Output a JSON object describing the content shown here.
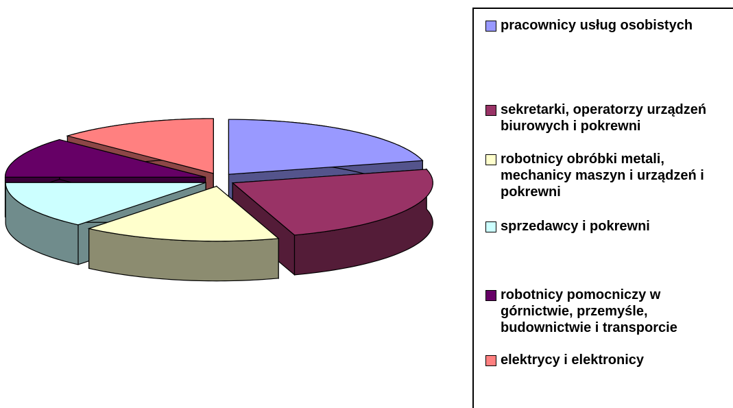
{
  "chart_data": {
    "type": "pie",
    "3d": true,
    "exploded": true,
    "categories": [
      "pracownicy usług osobistych",
      "sekretarki, operatorzy urządzeń biurowych i pokrewni",
      "robotnicy obróbki metali, mechanicy maszyn i urządzeń i pokrewni",
      "sprzedawcy i pokrewni",
      "robotnicy pomocniczy w górnictwie, przemyśle, budownictwie i transporcie",
      "elektrycy i elektronicy"
    ],
    "values": [
      21,
      24,
      16,
      14,
      12,
      13
    ],
    "colors": [
      "#9999ff",
      "#993366",
      "#ffffcc",
      "#ccffff",
      "#660066",
      "#ff8080"
    ],
    "legend": "right"
  }
}
